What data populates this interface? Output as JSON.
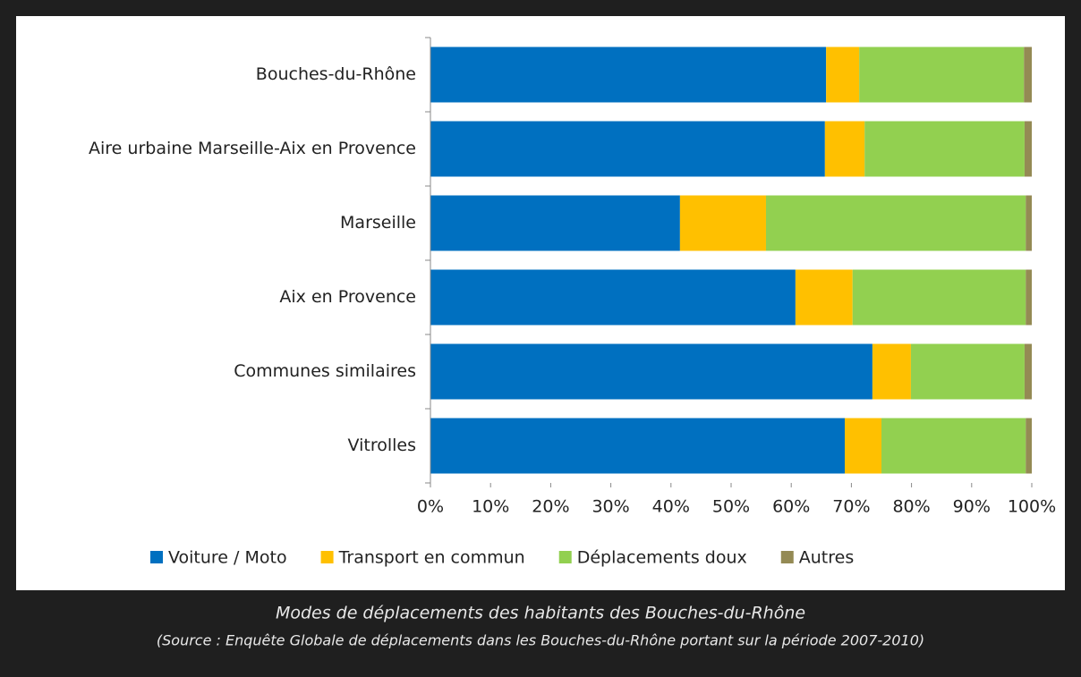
{
  "chart_data": {
    "type": "stacked_barh",
    "categories": [
      "Bouches-du-Rhône",
      "Aire urbaine Marseille-Aix en Provence",
      "Marseille",
      "Aix en Provence",
      "Communes similaires",
      "Vitrolles"
    ],
    "series": [
      {
        "name": "Voiture / Moto",
        "color": "#0070c0",
        "values": [
          65.8,
          65.6,
          41.5,
          60.7,
          73.5,
          68.9
        ]
      },
      {
        "name": "Transport en commun",
        "color": "#ffc000",
        "values": [
          5.5,
          6.6,
          14.3,
          9.5,
          6.4,
          6.1
        ]
      },
      {
        "name": "Déplacements doux",
        "color": "#92d050",
        "values": [
          27.4,
          26.6,
          43.2,
          28.8,
          18.9,
          24.0
        ]
      },
      {
        "name": "Autres",
        "color": "#948a54",
        "values": [
          1.3,
          1.2,
          1.0,
          1.0,
          1.2,
          1.0
        ]
      }
    ],
    "xlim": [
      0,
      100
    ],
    "xticks": [
      {
        "value": 0,
        "label": "0%"
      },
      {
        "value": 10,
        "label": "10%"
      },
      {
        "value": 20,
        "label": "20%"
      },
      {
        "value": 30,
        "label": "30%"
      },
      {
        "value": 40,
        "label": "40%"
      },
      {
        "value": 50,
        "label": "50%"
      },
      {
        "value": 60,
        "label": "60%"
      },
      {
        "value": 70,
        "label": "70%"
      },
      {
        "value": 80,
        "label": "80%"
      },
      {
        "value": 90,
        "label": "90%"
      },
      {
        "value": 100,
        "label": "100%"
      }
    ],
    "legend": "bottom",
    "caption": "Modes de déplacements des habitants des Bouches-du-Rhône",
    "source": "(Source : Enquête Globale de déplacements dans les Bouches-du-Rhône portant sur la période 2007-2010)"
  }
}
